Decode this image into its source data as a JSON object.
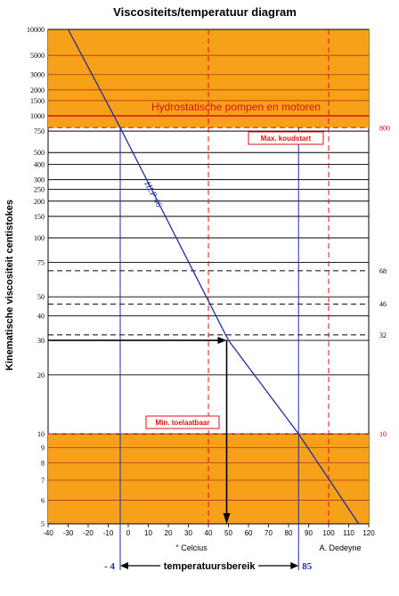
{
  "chart_data": {
    "type": "line",
    "title": "Viscositeits/temperatuur diagram",
    "ylabel": "Kinematische viscositeit centistokes",
    "xlabel": "° Celcius",
    "author": "A. Dedeyne",
    "xlim": [
      -40,
      120
    ],
    "ylim": [
      5,
      10000
    ],
    "yscale": "log",
    "x_ticks": [
      "-40",
      "-30",
      "-20",
      "-10",
      "0",
      "10",
      "20",
      "30",
      "40",
      "50",
      "60",
      "70",
      "80",
      "90",
      "100",
      "110",
      "120"
    ],
    "y_ticks": [
      {
        "v": 5,
        "label": "5"
      },
      {
        "v": 6,
        "label": "6"
      },
      {
        "v": 7,
        "label": "7"
      },
      {
        "v": 8,
        "label": "8"
      },
      {
        "v": 9,
        "label": "9"
      },
      {
        "v": 10,
        "label": "10"
      },
      {
        "v": 20,
        "label": "20"
      },
      {
        "v": 30,
        "label": "30"
      },
      {
        "v": 40,
        "label": "40"
      },
      {
        "v": 50,
        "label": "50"
      },
      {
        "v": 75,
        "label": "75"
      },
      {
        "v": 100,
        "label": "100"
      },
      {
        "v": 150,
        "label": "150"
      },
      {
        "v": 200,
        "label": "200"
      },
      {
        "v": 250,
        "label": "250"
      },
      {
        "v": 300,
        "label": "300"
      },
      {
        "v": 400,
        "label": "400"
      },
      {
        "v": 500,
        "label": "500"
      },
      {
        "v": 750,
        "label": "750"
      },
      {
        "v": 1000,
        "label": "1000"
      },
      {
        "v": 1500,
        "label": "1500"
      },
      {
        "v": 2000,
        "label": "2000"
      },
      {
        "v": 3000,
        "label": "3000"
      },
      {
        "v": 5000,
        "label": "5000"
      },
      {
        "v": 10000,
        "label": "10000"
      }
    ],
    "series": [
      {
        "name": "HLP 46",
        "color": "#1f2f9f",
        "x": [
          -30,
          -4,
          50,
          85,
          115
        ],
        "y": [
          10000,
          800,
          30,
          10,
          5
        ]
      }
    ],
    "orange_zones": [
      [
        800,
        10000
      ],
      [
        5,
        10
      ]
    ],
    "dashed_refs": [
      {
        "v": 800,
        "label": "800"
      },
      {
        "v": 68,
        "label": "68"
      },
      {
        "v": 46,
        "label": "46"
      },
      {
        "v": 32,
        "label": "32"
      },
      {
        "v": 10,
        "label": "10"
      }
    ],
    "vertical_dashed_x": [
      40,
      100
    ],
    "range_x": [
      -4,
      85
    ],
    "range_labels": {
      "left": "- 4",
      "right": "85",
      "middle": "temperatuursbereik"
    },
    "annotations": {
      "hydro": "Hydrostatische pompen en motoren",
      "max": "Max. koudstart",
      "min": "Min. toelaatbaar"
    },
    "colors": {
      "orange": "#f7a11b",
      "red": "#e01010",
      "line": "#1f2f9f"
    }
  }
}
